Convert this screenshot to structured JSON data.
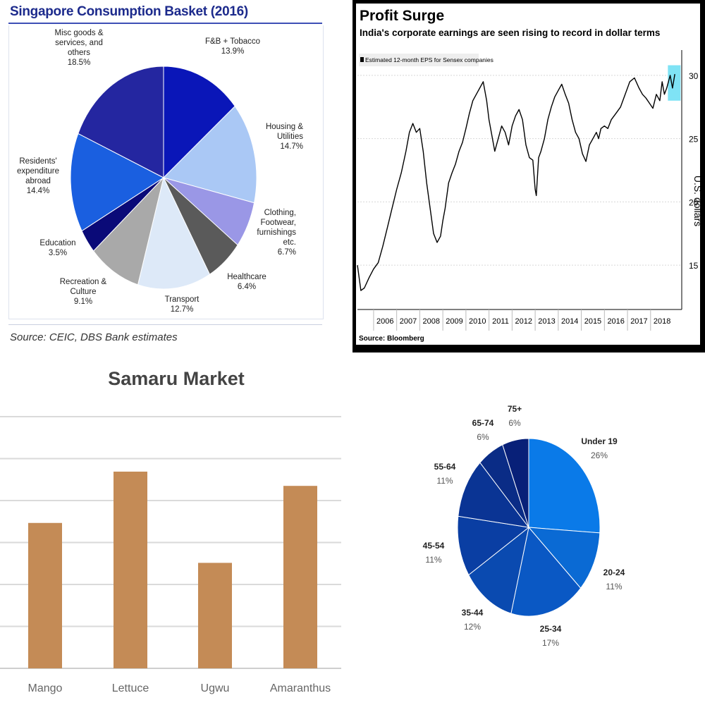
{
  "chart_data": [
    {
      "type": "pie",
      "title": "Singapore Consumption Basket (2016)",
      "source": "Source: CEIC, DBS Bank estimates",
      "slices": [
        {
          "label": "F&B + Tobacco",
          "display": "F&B + Tobacco",
          "value": 13.9,
          "value_label": "13.9%",
          "color": "#0a16b8"
        },
        {
          "label": "Housing & Utilities",
          "display": "Housing &|Utilities",
          "value": 14.7,
          "value_label": "14.7%",
          "color": "#aac8f5"
        },
        {
          "label": "Clothing, Footwear, furnishings etc.",
          "display": "Clothing,|Footwear,|furnishings|etc.",
          "value": 6.7,
          "value_label": "6.7%",
          "color": "#9a97e6"
        },
        {
          "label": "Healthcare",
          "display": "Healthcare",
          "value": 6.4,
          "value_label": "6.4%",
          "color": "#5a5a5a"
        },
        {
          "label": "Transport",
          "display": "Transport",
          "value": 12.7,
          "value_label": "12.7%",
          "color": "#dde9f8"
        },
        {
          "label": "Recreation & Culture",
          "display": "Recreation &|Culture",
          "value": 9.1,
          "value_label": "9.1%",
          "color": "#a9a9a9"
        },
        {
          "label": "Education",
          "display": "Education",
          "value": 3.5,
          "value_label": "3.5%",
          "color": "#0a0a78"
        },
        {
          "label": "Residents' expenditure abroad",
          "display": "Residents'|expenditure|abroad",
          "value": 14.4,
          "value_label": "14.4%",
          "color": "#1a5fe0"
        },
        {
          "label": "Misc goods & services, and others",
          "display": "Misc goods &|services, and|others",
          "value": 18.5,
          "value_label": "18.5%",
          "color": "#2426a0"
        }
      ]
    },
    {
      "type": "line",
      "title": "Profit Surge",
      "subtitle": "India's corporate earnings are seen rising to record in dollar terms",
      "legend": "Estimated 12-month EPS for Sensex companies",
      "ylabel": "U.S. dollars",
      "source": "Source: Bloomberg",
      "ylim": [
        11.5,
        32
      ],
      "xlim": [
        2005.3,
        2019.35
      ],
      "yticks": [
        15,
        20,
        25,
        30
      ],
      "xticks": [
        "2006",
        "2007",
        "2008",
        "2009",
        "2010",
        "2011",
        "2012",
        "2013",
        "2014",
        "2015",
        "2016",
        "2017",
        "2018"
      ],
      "series": [
        {
          "color": "#000000",
          "x": [
            2005.3,
            2005.45,
            2005.6,
            2005.8,
            2006.0,
            2006.2,
            2006.4,
            2006.6,
            2006.8,
            2007.0,
            2007.2,
            2007.4,
            2007.55,
            2007.7,
            2007.85,
            2008.0,
            2008.15,
            2008.3,
            2008.45,
            2008.6,
            2008.75,
            2008.9,
            2009.0,
            2009.1,
            2009.25,
            2009.4,
            2009.55,
            2009.7,
            2009.85,
            2010.0,
            2010.15,
            2010.3,
            2010.45,
            2010.6,
            2010.75,
            2010.9,
            2011.0,
            2011.1,
            2011.25,
            2011.4,
            2011.55,
            2011.7,
            2011.85,
            2012.0,
            2012.15,
            2012.3,
            2012.45,
            2012.6,
            2012.75,
            2012.9,
            2013.0,
            2013.05,
            2013.15,
            2013.25,
            2013.4,
            2013.55,
            2013.7,
            2013.85,
            2014.0,
            2014.15,
            2014.3,
            2014.45,
            2014.6,
            2014.75,
            2014.9,
            2015.05,
            2015.2,
            2015.35,
            2015.5,
            2015.65,
            2015.75,
            2015.85,
            2016.0,
            2016.15,
            2016.3,
            2016.5,
            2016.7,
            2016.9,
            2017.1,
            2017.3,
            2017.5,
            2017.65,
            2017.8,
            2017.95,
            2018.1,
            2018.25,
            2018.4,
            2018.5,
            2018.6,
            2018.7,
            2018.85,
            2018.95,
            2019.05
          ],
          "y": [
            15.0,
            13.0,
            13.2,
            14.0,
            14.7,
            15.2,
            16.5,
            18.0,
            19.5,
            21.0,
            22.3,
            24.0,
            25.5,
            26.2,
            25.5,
            25.8,
            24.0,
            21.5,
            19.5,
            17.5,
            16.8,
            17.3,
            18.5,
            19.5,
            21.5,
            22.3,
            23.0,
            24.0,
            24.7,
            25.8,
            27.0,
            28.0,
            28.5,
            29.0,
            29.5,
            28.0,
            26.5,
            25.5,
            24.0,
            25.0,
            26.0,
            25.5,
            24.5,
            26.0,
            26.8,
            27.3,
            26.5,
            24.5,
            23.5,
            23.3,
            21.0,
            20.5,
            23.5,
            24.0,
            25.0,
            26.5,
            27.5,
            28.3,
            28.8,
            29.3,
            28.5,
            27.8,
            26.5,
            25.5,
            25.0,
            23.8,
            23.2,
            24.5,
            25.0,
            25.5,
            25.0,
            25.8,
            26.0,
            25.8,
            26.5,
            27.0,
            27.5,
            28.5,
            29.5,
            29.8,
            29.0,
            28.5,
            28.2,
            27.8,
            27.4,
            28.5,
            28.0,
            29.5,
            28.5,
            29.0,
            30.0,
            29.0,
            30.1
          ]
        }
      ],
      "highlight": {
        "x0": 2018.75,
        "x1": 2019.3,
        "y0": 28.0,
        "y1": 30.8,
        "color": "#7fe3f5"
      }
    },
    {
      "type": "bar",
      "title": "Samaru Market",
      "categories": [
        "Mango",
        "Lettuce",
        "Ugwu",
        "Amaranthus"
      ],
      "values": [
        51,
        69,
        37,
        64
      ],
      "ylim": [
        0,
        91
      ],
      "grid": true,
      "bar_color": "#c48b56"
    },
    {
      "type": "pie",
      "title": "",
      "slices": [
        {
          "label": "Under 19",
          "value": 26,
          "value_label": "26%",
          "color": "#0a7ae8"
        },
        {
          "label": "20-24",
          "value": 11,
          "value_label": "11%",
          "color": "#0a6ad4"
        },
        {
          "label": "25-34",
          "value": 17,
          "value_label": "17%",
          "color": "#0a58c4"
        },
        {
          "label": "35-44",
          "value": 12,
          "value_label": "12%",
          "color": "#0a4ab0"
        },
        {
          "label": "45-54",
          "value": 11,
          "value_label": "11%",
          "color": "#0a3ea3"
        },
        {
          "label": "55-64",
          "value": 11,
          "value_label": "11%",
          "color": "#0a3494"
        },
        {
          "label": "65-74",
          "value": 6,
          "value_label": "6%",
          "color": "#0a2c86"
        },
        {
          "label": "75+",
          "value": 6,
          "value_label": "6%",
          "color": "#082078"
        }
      ]
    }
  ]
}
